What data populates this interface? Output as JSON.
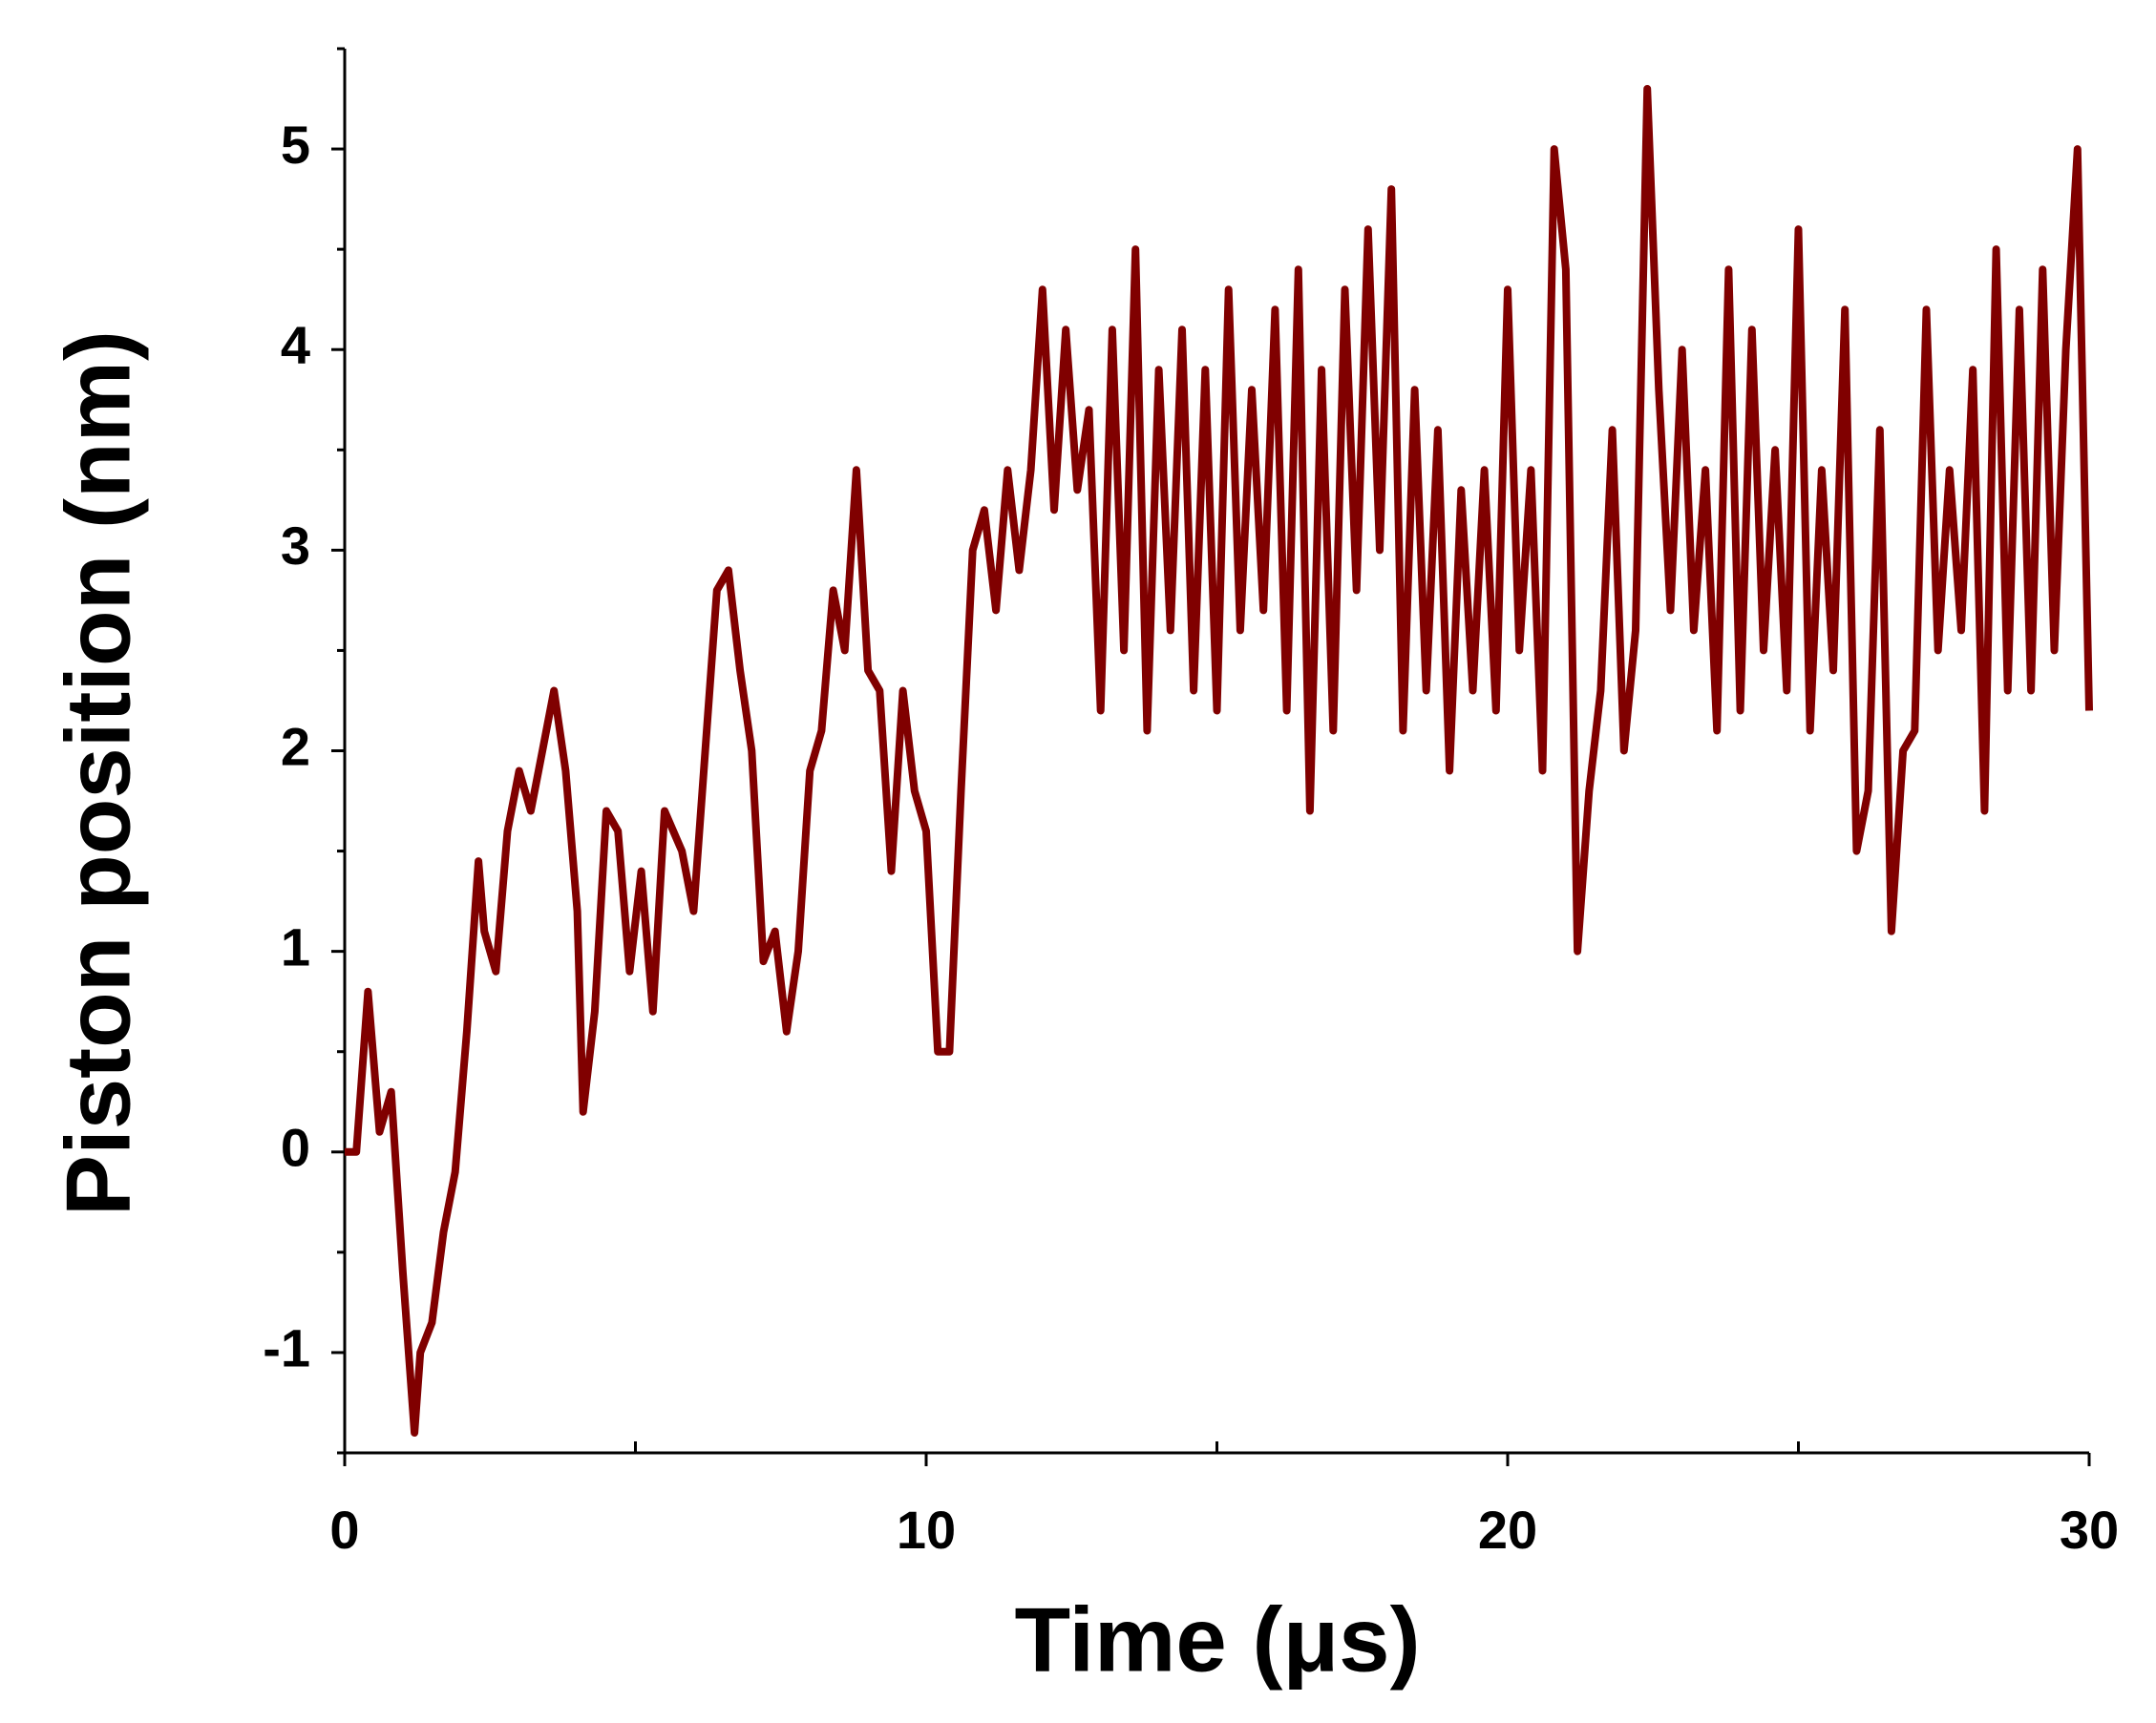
{
  "chart_data": {
    "type": "line",
    "xlabel": "Time (μs)",
    "ylabel": "Piston position (nm)",
    "color": "#800000",
    "xlim": [
      0,
      30
    ],
    "xticks": [
      0,
      10,
      20,
      30
    ],
    "xminorticks": [
      5,
      15,
      25
    ],
    "ylim": [
      -1.5,
      5.5
    ],
    "yticks": [
      -1,
      0,
      1,
      2,
      3,
      4,
      5
    ],
    "yminorticks": [
      -1.5,
      -0.5,
      0.5,
      1.5,
      2.5,
      3.5,
      4.5,
      5.5
    ],
    "grid": false,
    "x": [
      0,
      0.2,
      0.4,
      0.6,
      0.8,
      1.0,
      1.2,
      1.3,
      1.5,
      1.7,
      1.9,
      2.1,
      2.3,
      2.4,
      2.6,
      2.8,
      3.0,
      3.2,
      3.4,
      3.6,
      3.8,
      4.0,
      4.1,
      4.3,
      4.5,
      4.7,
      4.9,
      5.1,
      5.3,
      5.5,
      5.8,
      6.0,
      6.2,
      6.4,
      6.6,
      6.8,
      7.0,
      7.2,
      7.4,
      7.6,
      7.8,
      8.0,
      8.2,
      8.4,
      8.6,
      8.8,
      9.0,
      9.2,
      9.4,
      9.6,
      9.8,
      10.0,
      10.2,
      10.4,
      10.6,
      10.8,
      11.0,
      11.2,
      11.4,
      11.6,
      11.8,
      12.0,
      12.2,
      12.4,
      12.6,
      12.8,
      13.0,
      13.2,
      13.4,
      13.6,
      13.8,
      14.0,
      14.2,
      14.4,
      14.6,
      14.8,
      15.0,
      15.2,
      15.4,
      15.6,
      15.8,
      16.0,
      16.2,
      16.4,
      16.6,
      16.8,
      17.0,
      17.2,
      17.4,
      17.6,
      17.8,
      18.0,
      18.2,
      18.4,
      18.6,
      18.8,
      19.0,
      19.2,
      19.4,
      19.6,
      19.8,
      20.0,
      20.2,
      20.4,
      20.6,
      20.8,
      21.0,
      21.2,
      21.4,
      21.6,
      21.8,
      22.0,
      22.2,
      22.4,
      22.6,
      22.8,
      23.0,
      23.2,
      23.4,
      23.6,
      23.8,
      24.0,
      24.2,
      24.4,
      24.6,
      24.8,
      25.0,
      25.2,
      25.4,
      25.6,
      25.8,
      26.0,
      26.2,
      26.4,
      26.6,
      26.8,
      27.0,
      27.2,
      27.4,
      27.6,
      27.8,
      28.0,
      28.2,
      28.4,
      28.6,
      28.8,
      29.0,
      29.2,
      29.4,
      29.6,
      29.8,
      30.0
    ],
    "values": [
      0,
      0.0,
      0.8,
      0.1,
      0.3,
      -0.6,
      -1.4,
      -1.0,
      -0.85,
      -0.4,
      -0.1,
      0.6,
      1.45,
      1.1,
      0.9,
      1.6,
      1.9,
      1.7,
      2.0,
      2.3,
      1.9,
      1.2,
      0.2,
      0.7,
      1.7,
      1.6,
      0.9,
      1.4,
      0.7,
      1.7,
      1.5,
      1.2,
      2.0,
      2.8,
      2.9,
      2.4,
      2.0,
      0.95,
      1.1,
      0.6,
      1.0,
      1.9,
      2.1,
      2.8,
      2.5,
      3.4,
      2.4,
      2.3,
      1.4,
      2.3,
      1.8,
      1.6,
      0.5,
      0.5,
      1.8,
      3.0,
      3.2,
      2.7,
      3.4,
      2.9,
      3.4,
      4.3,
      3.2,
      4.1,
      3.3,
      3.7,
      2.2,
      4.1,
      2.5,
      4.5,
      2.1,
      3.9,
      2.6,
      4.1,
      2.3,
      3.9,
      2.2,
      4.3,
      2.6,
      3.8,
      2.7,
      4.2,
      2.2,
      4.4,
      1.7,
      3.9,
      2.1,
      4.3,
      2.8,
      4.6,
      3.0,
      4.8,
      2.1,
      3.8,
      2.3,
      3.6,
      1.9,
      3.3,
      2.3,
      3.4,
      2.2,
      4.3,
      2.5,
      3.4,
      1.9,
      5.0,
      4.4,
      1.0,
      1.8,
      2.3,
      3.6,
      2.0,
      2.6,
      5.3,
      3.8,
      2.7,
      4.0,
      2.6,
      3.4,
      2.1,
      4.4,
      2.2,
      4.1,
      2.5,
      3.5,
      2.3,
      4.6,
      2.1,
      3.4,
      2.4,
      4.2,
      1.5,
      1.8,
      3.6,
      1.1,
      2.0,
      2.1,
      4.2,
      2.5,
      3.4,
      2.6,
      3.9,
      1.7,
      4.5,
      2.3,
      4.2,
      2.3,
      4.4,
      2.5,
      4.0,
      5.0,
      2.2
    ]
  }
}
